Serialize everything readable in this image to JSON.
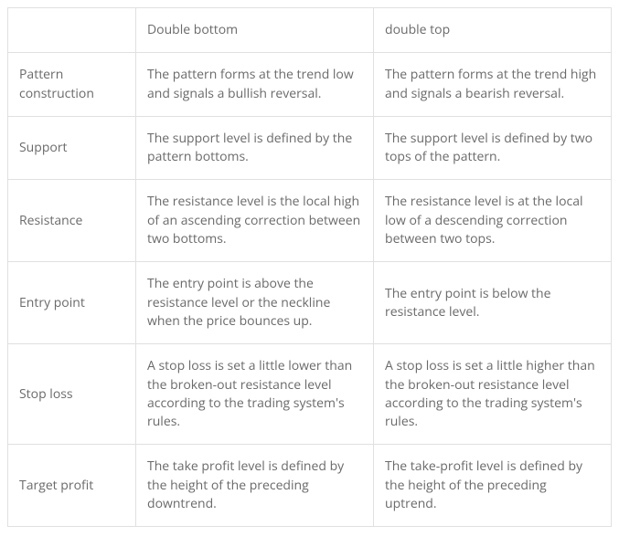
{
  "table": {
    "columns": [
      "",
      "Double bottom",
      "double top"
    ],
    "rows": [
      {
        "label": "Pattern construction",
        "col1": "The pattern forms at the trend low and signals a bullish reversal.",
        "col2": "The pattern forms at the trend high and signals a bearish reversal."
      },
      {
        "label": "Support",
        "col1": "The support level is defined by the pattern bottoms.",
        "col2": "The support level is defined by two tops of the pattern."
      },
      {
        "label": "Resistance",
        "col1": "The resistance level is the local high of an ascending correction between two bottoms.",
        "col2": "The resistance level is at the local low of a descending correction between two tops."
      },
      {
        "label": "Entry point",
        "col1": "The entry point is above the resistance level or the neckline when the price bounces up.",
        "col2": "The entry point is below the resistance level."
      },
      {
        "label": "Stop loss",
        "col1": "A stop loss is set a little lower than the broken-out resistance level according to the trading system's rules.",
        "col2": "A stop loss is set a little higher than the broken-out resistance level according to the trading system's rules."
      },
      {
        "label": "Target profit",
        "col1": "The take profit level is defined by the height of the preceding downtrend.",
        "col2": "The take-profit level is defined by the height of the preceding uptrend."
      }
    ],
    "styling": {
      "border_color": "#e0e0e0",
      "text_color": "#6a6a6a",
      "background_color": "#ffffff",
      "font_size": 14,
      "cell_padding": "14px 12px",
      "col_label_width": 140,
      "col_data_width": 260
    }
  }
}
